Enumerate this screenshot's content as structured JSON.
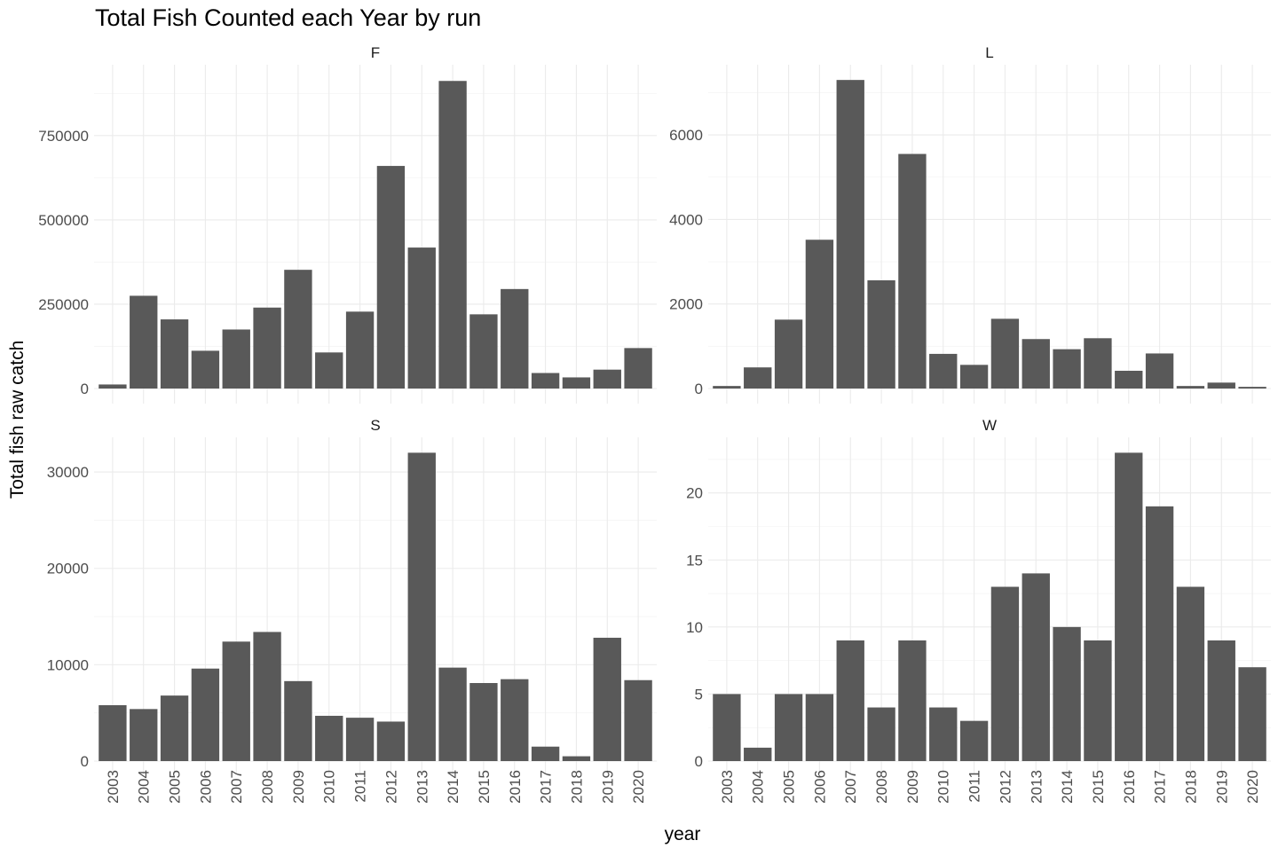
{
  "chart_data": {
    "type": "bar",
    "title": "Total Fish Counted each Year by run",
    "xlabel": "year",
    "ylabel": "Total fish raw catch",
    "categories": [
      "2003",
      "2004",
      "2005",
      "2006",
      "2007",
      "2008",
      "2009",
      "2010",
      "2011",
      "2012",
      "2013",
      "2014",
      "2015",
      "2016",
      "2017",
      "2018",
      "2019",
      "2020"
    ],
    "bar_color": "#595959",
    "grid": true,
    "facets": [
      {
        "label": "F",
        "ylim": [
          0,
          960000
        ],
        "yticks": [
          0,
          250000,
          500000,
          750000
        ],
        "ytick_labels": [
          "0",
          "250000",
          "500000",
          "750000"
        ],
        "values": [
          12000,
          275000,
          205000,
          112000,
          175000,
          240000,
          352000,
          107000,
          228000,
          660000,
          418000,
          912000,
          220000,
          295000,
          46000,
          33000,
          56000,
          120000
        ]
      },
      {
        "label": "L",
        "ylim": [
          0,
          7660
        ],
        "yticks": [
          0,
          2000,
          4000,
          6000
        ],
        "ytick_labels": [
          "0",
          "2000",
          "4000",
          "6000"
        ],
        "values": [
          60,
          500,
          1630,
          3520,
          7300,
          2560,
          5550,
          820,
          560,
          1650,
          1170,
          930,
          1190,
          420,
          830,
          60,
          140,
          40
        ]
      },
      {
        "label": "S",
        "ylim": [
          0,
          33600
        ],
        "yticks": [
          0,
          10000,
          20000,
          30000
        ],
        "ytick_labels": [
          "0",
          "10000",
          "20000",
          "30000"
        ],
        "values": [
          5800,
          5400,
          6800,
          9600,
          12400,
          13400,
          8300,
          4700,
          4500,
          4100,
          32000,
          9700,
          8100,
          8500,
          1500,
          500,
          12800,
          8400
        ]
      },
      {
        "label": "W",
        "ylim": [
          0,
          24.15
        ],
        "yticks": [
          0,
          5,
          10,
          15,
          20
        ],
        "ytick_labels": [
          "0",
          "5",
          "10",
          "15",
          "20"
        ],
        "values": [
          5,
          1,
          5,
          5,
          9,
          4,
          9,
          4,
          3,
          13,
          14,
          10,
          9,
          23,
          19,
          13,
          9,
          7
        ]
      }
    ]
  }
}
